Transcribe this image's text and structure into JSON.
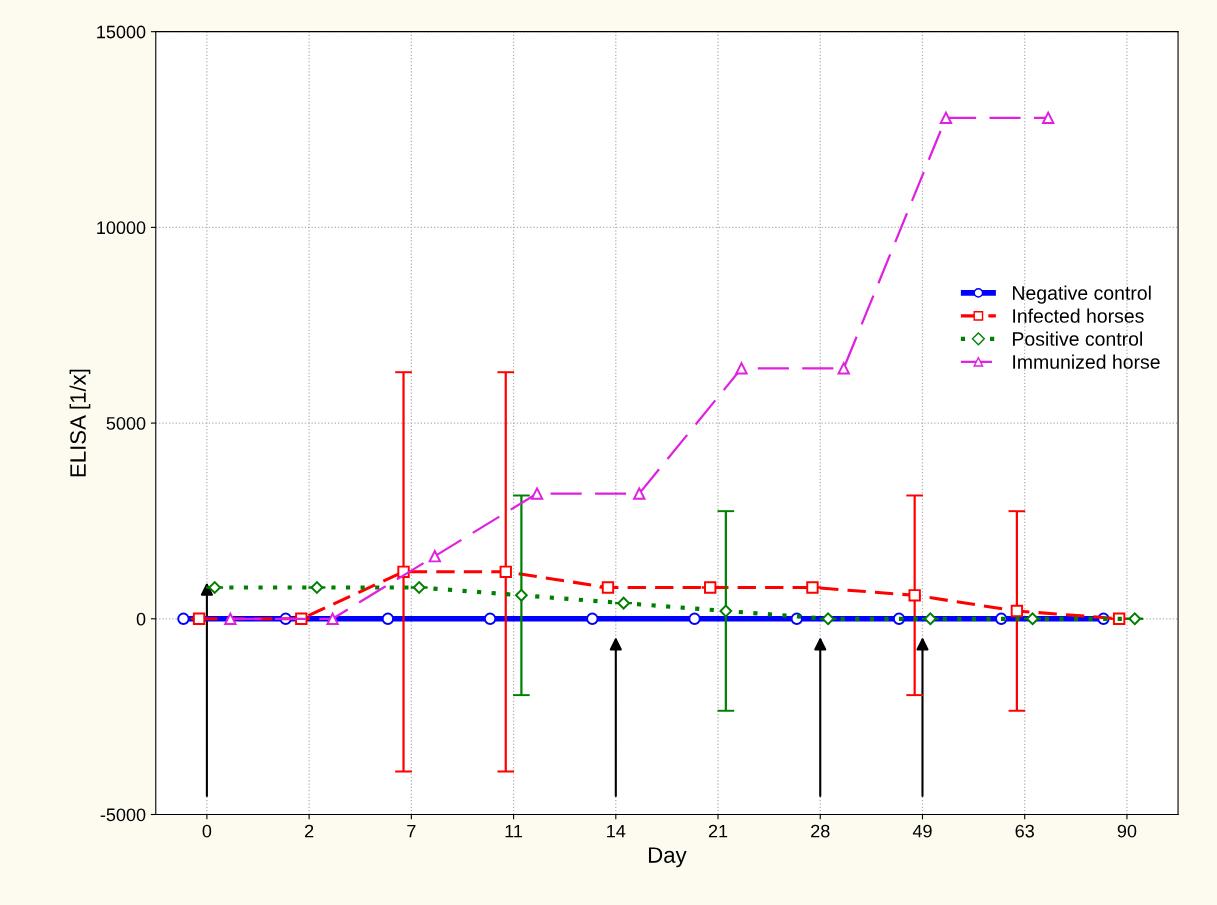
{
  "chart_data": {
    "type": "line",
    "xlabel": "Day",
    "ylabel": "ELISA [1/x]",
    "categories": [
      "0",
      "2",
      "7",
      "11",
      "14",
      "21",
      "28",
      "49",
      "63",
      "90"
    ],
    "series": [
      {
        "name": "Negative control",
        "color": "#0000ff",
        "marker": "circle",
        "line_style": "solid",
        "values": [
          0,
          0,
          0,
          0,
          0,
          0,
          0,
          0,
          0,
          0
        ]
      },
      {
        "name": "Infected horses",
        "color": "#ff0000",
        "marker": "square",
        "line_style": "dashed",
        "values": [
          0,
          0,
          1200,
          1200,
          800,
          800,
          800,
          600,
          200,
          0
        ],
        "errors": [
          null,
          null,
          5100,
          5100,
          null,
          null,
          null,
          2550,
          2550,
          null
        ]
      },
      {
        "name": "Positive control",
        "color": "#008000",
        "marker": "diamond",
        "line_style": "dotted",
        "values": [
          800,
          800,
          800,
          600,
          400,
          200,
          0,
          0,
          0,
          0
        ],
        "errors": [
          null,
          null,
          null,
          2550,
          null,
          2550,
          null,
          null,
          null,
          null
        ]
      },
      {
        "name": "Immunized horse",
        "color": "#e020e0",
        "marker": "triangle",
        "line_style": "dashed",
        "values": [
          0,
          0,
          1600,
          3200,
          3200,
          6400,
          6400,
          12800,
          12800,
          null
        ]
      }
    ],
    "ylim": [
      -5000,
      15000
    ],
    "yticks": [
      -5000,
      0,
      5000,
      10000,
      15000
    ],
    "grid": true,
    "legend": "right"
  }
}
